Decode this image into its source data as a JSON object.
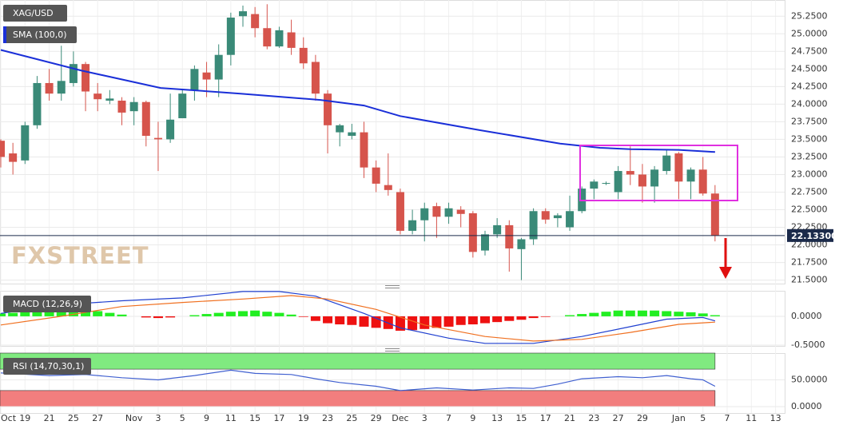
{
  "chart_data": [
    {
      "type": "candlestick",
      "title": "XAG/USD",
      "watermark": "FXSTREET",
      "categories": [
        "Oct",
        null,
        "19",
        null,
        "21",
        null,
        "25",
        null,
        "27",
        null,
        null,
        "Nov",
        null,
        "3",
        null,
        "5",
        null,
        "9",
        null,
        "11",
        null,
        "15",
        null,
        "17",
        null,
        "19",
        null,
        "23",
        null,
        "25",
        null,
        "29",
        null,
        "Dec",
        null,
        "3",
        null,
        "7",
        null,
        "9",
        null,
        "13",
        null,
        "15",
        null,
        "17",
        null,
        "21",
        null,
        "23",
        null,
        "27",
        null,
        "29",
        null,
        null,
        "Jan",
        null,
        "5",
        null,
        "7",
        null,
        "11",
        null,
        "13"
      ],
      "open": [
        23.48,
        23.3,
        23.2,
        23.7,
        24.3,
        24.15,
        24.3,
        24.57,
        24.15,
        24.05,
        24.05,
        23.9,
        24.03,
        23.52,
        23.5,
        23.8,
        24.2,
        24.45,
        24.35,
        24.7,
        25.25,
        25.28,
        25.08,
        24.82,
        25.02,
        24.8,
        24.6,
        24.15,
        23.6,
        23.55,
        23.6,
        23.1,
        22.85,
        22.75,
        22.2,
        22.35,
        22.55,
        22.4,
        22.5,
        22.45,
        21.92,
        22.15,
        22.28,
        21.94,
        22.08,
        22.48,
        22.38,
        22.25,
        22.48,
        22.8,
        22.88,
        22.75,
        23.05,
        23.0,
        22.83,
        23.05,
        23.3,
        22.9,
        23.07,
        22.73,
        null,
        null,
        null,
        null,
        null
      ],
      "high": [
        23.5,
        23.45,
        23.75,
        24.4,
        24.5,
        24.83,
        24.75,
        24.6,
        24.3,
        24.2,
        24.1,
        24.1,
        24.05,
        23.75,
        24.15,
        24.2,
        24.55,
        24.6,
        24.85,
        25.3,
        25.4,
        25.38,
        25.42,
        25.1,
        25.2,
        24.95,
        24.7,
        24.2,
        23.72,
        23.72,
        23.75,
        23.2,
        23.3,
        22.8,
        22.5,
        22.6,
        22.6,
        22.6,
        22.55,
        22.48,
        22.2,
        22.38,
        22.35,
        22.1,
        22.52,
        22.52,
        22.45,
        22.7,
        22.83,
        22.93,
        22.9,
        23.12,
        23.4,
        23.15,
        23.12,
        23.35,
        23.32,
        23.1,
        23.25,
        22.85,
        null,
        null,
        null,
        null,
        null
      ],
      "low": [
        23.1,
        23.0,
        23.15,
        23.65,
        24.05,
        24.05,
        24.25,
        23.9,
        23.9,
        24.0,
        23.7,
        23.7,
        23.4,
        23.05,
        23.45,
        23.8,
        24.05,
        24.1,
        24.1,
        24.55,
        25.1,
        24.95,
        24.78,
        24.8,
        24.7,
        24.5,
        24.05,
        23.3,
        23.4,
        23.5,
        22.95,
        22.75,
        22.7,
        22.15,
        22.15,
        22.05,
        22.1,
        22.3,
        22.25,
        21.82,
        21.85,
        22.1,
        21.62,
        21.5,
        22.0,
        22.3,
        22.25,
        22.2,
        22.45,
        22.65,
        22.85,
        22.65,
        22.85,
        22.6,
        22.6,
        23.0,
        22.65,
        22.65,
        22.7,
        22.05,
        null,
        null,
        null,
        null,
        null
      ],
      "close": [
        23.25,
        23.18,
        23.7,
        24.3,
        24.15,
        24.33,
        24.57,
        24.18,
        24.07,
        24.08,
        23.88,
        24.03,
        23.55,
        23.5,
        23.78,
        24.15,
        24.5,
        24.35,
        24.7,
        25.23,
        25.32,
        25.08,
        24.82,
        25.05,
        24.8,
        24.58,
        24.15,
        23.7,
        23.7,
        23.6,
        23.1,
        22.87,
        22.78,
        22.2,
        22.35,
        22.52,
        22.4,
        22.52,
        22.44,
        21.9,
        22.15,
        22.28,
        21.95,
        22.08,
        22.48,
        22.36,
        22.42,
        22.48,
        22.8,
        22.9,
        22.88,
        23.05,
        23.0,
        22.83,
        23.07,
        23.27,
        22.9,
        23.07,
        22.73,
        22.133,
        null,
        null,
        null,
        null,
        null
      ],
      "up_color": "#3a8a78",
      "down_color": "#d6544c",
      "ylim": [
        21.45,
        25.48
      ],
      "yticks": [
        {
          "value": 21.5,
          "label": "21.5000"
        },
        {
          "value": 21.75,
          "label": "21.7500"
        },
        {
          "value": 22,
          "label": "22.0000"
        },
        {
          "value": 22.25,
          "label": "22.2500"
        },
        {
          "value": 22.5,
          "label": "22.5000"
        },
        {
          "value": 22.75,
          "label": "22.7500"
        },
        {
          "value": 23,
          "label": "23.0000"
        },
        {
          "value": 23.25,
          "label": "23.2500"
        },
        {
          "value": 23.5,
          "label": "23.5000"
        },
        {
          "value": 23.75,
          "label": "23.7500"
        },
        {
          "value": 24,
          "label": "24.0000"
        },
        {
          "value": 24.25,
          "label": "24.2500"
        },
        {
          "value": 24.5,
          "label": "24.5000"
        },
        {
          "value": 24.75,
          "label": "24.7500"
        },
        {
          "value": 25,
          "label": "25.0000"
        },
        {
          "value": 25.25,
          "label": "25.2500"
        }
      ],
      "last_price": {
        "value": 22.133,
        "label": "22.13300"
      },
      "series": [
        {
          "name": "SMA (100,0)",
          "color": "#1a2fd8",
          "x": [
            0,
            6.6,
            13.2,
            19.8,
            26.4,
            30,
            33,
            39.6,
            46.2,
            49.5,
            52,
            56,
            59
          ],
          "values": [
            24.77,
            24.48,
            24.23,
            24.15,
            24.06,
            23.98,
            23.83,
            23.63,
            23.44,
            23.38,
            23.36,
            23.35,
            23.32
          ]
        }
      ]
    },
    {
      "type": "macd",
      "title": "MACD (12,26,9)",
      "histogram": [
        0.05,
        0.06,
        0.07,
        0.08,
        0.09,
        0.1,
        0.1,
        0.1,
        0.09,
        0.06,
        0.03,
        0,
        -0.02,
        -0.03,
        -0.02,
        0,
        0.02,
        0.04,
        0.06,
        0.08,
        0.09,
        0.1,
        0.08,
        0.06,
        0.03,
        -0.01,
        -0.08,
        -0.12,
        -0.14,
        -0.15,
        -0.18,
        -0.2,
        -0.22,
        -0.25,
        -0.24,
        -0.22,
        -0.2,
        -0.18,
        -0.15,
        -0.14,
        -0.12,
        -0.1,
        -0.08,
        -0.06,
        -0.03,
        -0.01,
        0,
        0.02,
        0.04,
        0.06,
        0.08,
        0.1,
        0.1,
        0.1,
        0.1,
        0.09,
        0.08,
        0.07,
        0.05,
        0.02,
        null,
        null,
        null,
        null,
        null
      ],
      "up_color": "#22ee22",
      "down_color": "#ee1111",
      "ylim": [
        -0.514,
        0.443
      ],
      "yticks": [
        {
          "value": -0.5,
          "label": "-0.5000"
        },
        {
          "value": 0,
          "label": "0.0000"
        }
      ],
      "series": [
        {
          "color": "#2040d0",
          "x": [
            0,
            5,
            10,
            15,
            20,
            23,
            26,
            30,
            33,
            37,
            40,
            44,
            48,
            52,
            55,
            58,
            59
          ],
          "values": [
            0.05,
            0.2,
            0.27,
            0.32,
            0.43,
            0.43,
            0.35,
            0.05,
            -0.2,
            -0.38,
            -0.47,
            -0.47,
            -0.35,
            -0.18,
            -0.05,
            -0.02,
            -0.08
          ]
        },
        {
          "color": "#f07020",
          "x": [
            0,
            5,
            10,
            15,
            20,
            24,
            27,
            31,
            35,
            40,
            44,
            48,
            52,
            56,
            59
          ],
          "values": [
            -0.15,
            0.0,
            0.17,
            0.24,
            0.3,
            0.36,
            0.3,
            0.12,
            -0.15,
            -0.35,
            -0.43,
            -0.4,
            -0.28,
            -0.14,
            -0.1
          ]
        }
      ]
    },
    {
      "type": "rsi",
      "title": "RSI (14,70,30,1)",
      "ylim": [
        -12,
        100
      ],
      "yticks": [
        {
          "value": 0,
          "label": "0.0000"
        },
        {
          "value": 50,
          "label": "50.0000"
        }
      ],
      "bands": [
        {
          "from": 70,
          "to": 100,
          "color": "#80ea80"
        },
        {
          "from": 0,
          "to": 30,
          "color": "#f27e7e"
        }
      ],
      "series": [
        {
          "color": "#4060d0",
          "x": [
            0,
            4,
            7,
            10,
            13,
            16,
            19,
            21,
            24,
            26,
            28,
            31,
            33,
            36,
            39,
            42,
            44,
            46,
            48,
            51,
            53,
            55,
            57,
            58,
            59
          ],
          "values": [
            63,
            58,
            60,
            54,
            50,
            58,
            68,
            62,
            60,
            52,
            45,
            38,
            30,
            35,
            31,
            35,
            34,
            42,
            52,
            56,
            54,
            58,
            52,
            50,
            38
          ]
        }
      ]
    }
  ]
}
